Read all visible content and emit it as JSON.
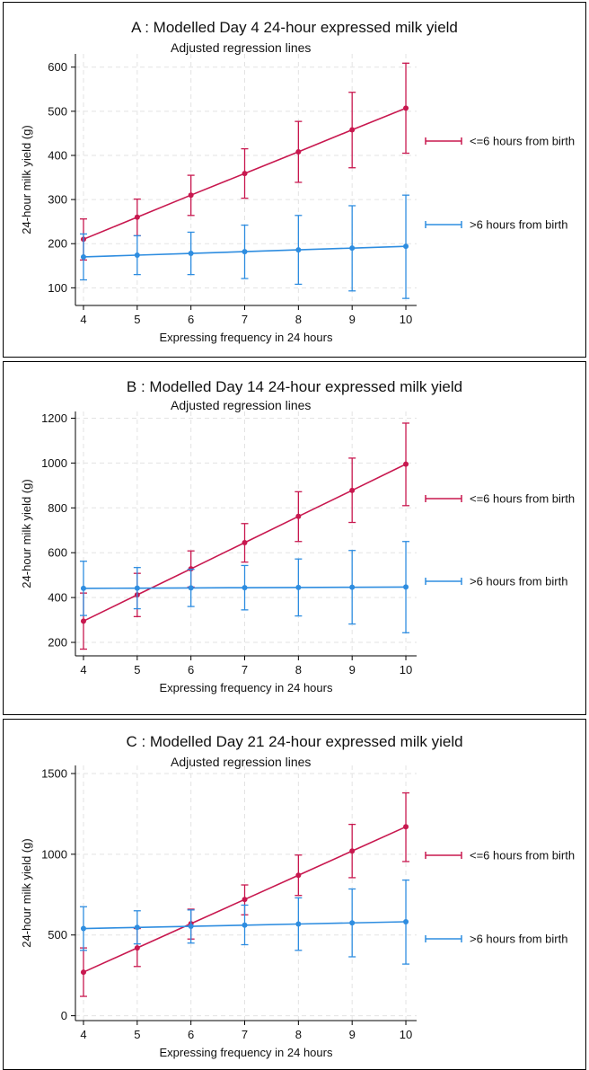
{
  "chart_data": [
    {
      "type": "line",
      "panel": "A",
      "title": "A : Modelled Day 4 24-hour expressed milk yield",
      "subtitle": "Adjusted regression lines",
      "xlabel": "Expressing frequency in 24 hours",
      "ylabel": "24-hour milk yield (g)",
      "x": [
        4,
        5,
        6,
        7,
        8,
        9,
        10
      ],
      "xlim": [
        3.85,
        10.2
      ],
      "ylim": [
        60,
        630
      ],
      "yticks": [
        100,
        200,
        300,
        400,
        500,
        600
      ],
      "grid": true,
      "legend_position": "right",
      "series": [
        {
          "name": "<=6 hours from birth",
          "color": "#c8184f",
          "values": [
            210,
            260,
            310,
            359,
            408,
            458,
            507
          ],
          "lower": [
            163,
            218,
            264,
            303,
            339,
            372,
            405
          ],
          "upper": [
            256,
            301,
            355,
            415,
            477,
            543,
            609
          ]
        },
        {
          "name": ">6 hours from birth",
          "color": "#2e8de0",
          "values": [
            170,
            174,
            178,
            182,
            186,
            190,
            194
          ],
          "lower": [
            118,
            130,
            130,
            121,
            108,
            93,
            76
          ],
          "upper": [
            222,
            218,
            226,
            242,
            264,
            286,
            310
          ]
        }
      ]
    },
    {
      "type": "line",
      "panel": "B",
      "title": "B : Modelled Day 14 24-hour expressed milk yield",
      "subtitle": "Adjusted regression lines",
      "xlabel": "Expressing frequency in 24 hours",
      "ylabel": "24-hour milk yield (g)",
      "x": [
        4,
        5,
        6,
        7,
        8,
        9,
        10
      ],
      "xlim": [
        3.85,
        10.2
      ],
      "ylim": [
        140,
        1230
      ],
      "yticks": [
        200,
        400,
        600,
        800,
        1000,
        1200
      ],
      "grid": true,
      "legend_position": "right",
      "series": [
        {
          "name": "<=6 hours from birth",
          "color": "#c8184f",
          "values": [
            295,
            412,
            528,
            645,
            762,
            878,
            995
          ],
          "lower": [
            170,
            315,
            447,
            558,
            650,
            735,
            810
          ],
          "upper": [
            420,
            508,
            608,
            730,
            872,
            1022,
            1178
          ]
        },
        {
          "name": ">6 hours from birth",
          "color": "#2e8de0",
          "values": [
            441,
            442,
            443,
            444,
            445,
            446,
            447
          ],
          "lower": [
            320,
            350,
            360,
            345,
            318,
            282,
            243
          ],
          "upper": [
            562,
            534,
            526,
            543,
            572,
            610,
            650
          ]
        }
      ]
    },
    {
      "type": "line",
      "panel": "C",
      "title": "C : Modelled Day 21 24-hour expressed milk yield",
      "subtitle": "Adjusted regression lines",
      "xlabel": "Expressing frequency in 24 hours",
      "ylabel": "24-hour milk yield (g)",
      "x": [
        4,
        5,
        6,
        7,
        8,
        9,
        10
      ],
      "xlim": [
        3.85,
        10.2
      ],
      "ylim": [
        -30,
        1550
      ],
      "yticks": [
        0,
        500,
        1000,
        1500
      ],
      "grid": true,
      "legend_position": "right",
      "series": [
        {
          "name": "<=6 hours from birth",
          "color": "#c8184f",
          "values": [
            270,
            420,
            570,
            720,
            870,
            1020,
            1170
          ],
          "lower": [
            120,
            305,
            475,
            625,
            745,
            855,
            955
          ],
          "upper": [
            420,
            540,
            660,
            810,
            995,
            1185,
            1380
          ]
        },
        {
          "name": ">6 hours from birth",
          "color": "#2e8de0",
          "values": [
            540,
            547,
            554,
            561,
            568,
            575,
            582
          ],
          "lower": [
            405,
            445,
            450,
            440,
            405,
            365,
            320
          ],
          "upper": [
            675,
            650,
            655,
            685,
            730,
            785,
            840
          ]
        }
      ]
    }
  ]
}
